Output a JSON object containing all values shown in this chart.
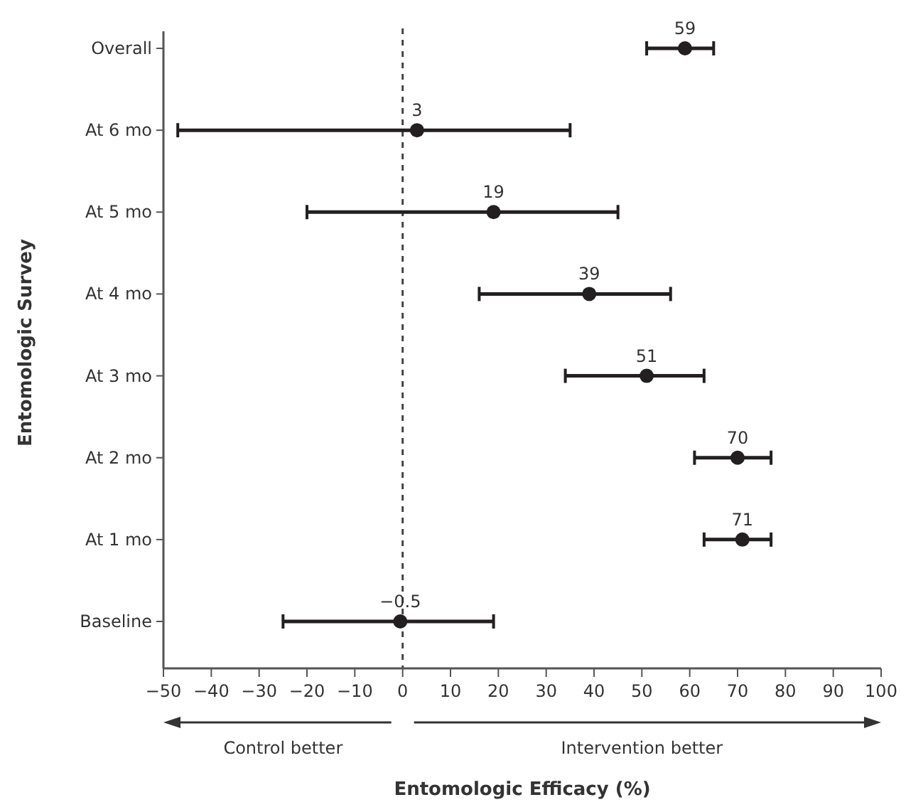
{
  "chart_data": {
    "type": "scatter",
    "orientation": "horizontal",
    "categories": [
      "Overall",
      "At 6 mo",
      "At 5 mo",
      "At 4 mo",
      "At 3 mo",
      "At 2 mo",
      "At 1 mo",
      "Baseline"
    ],
    "values": [
      59,
      3,
      19,
      39,
      51,
      70,
      71,
      -0.5
    ],
    "errors": [
      [
        51,
        65
      ],
      [
        -47,
        35
      ],
      [
        -20,
        45
      ],
      [
        16,
        56
      ],
      [
        34,
        63
      ],
      [
        61,
        77
      ],
      [
        63,
        77
      ],
      [
        -25,
        19
      ]
    ],
    "color": "#231f20",
    "marker": "circle",
    "data_labels": true,
    "value_labels": [
      "59",
      "3",
      "19",
      "39",
      "51",
      "70",
      "71",
      "−0.5"
    ],
    "xlim": [
      -50,
      100
    ],
    "xticks": [
      {
        "value": -50,
        "label": "−50"
      },
      {
        "value": -40,
        "label": "−40"
      },
      {
        "value": -30,
        "label": "−30"
      },
      {
        "value": -20,
        "label": "−20"
      },
      {
        "value": -10,
        "label": "−10"
      },
      0,
      10,
      20,
      30,
      40,
      50,
      60,
      70,
      80,
      90,
      100
    ],
    "ref_lines": [
      {
        "axis": "x",
        "value": 0,
        "line_style": "dashed"
      }
    ],
    "ylabel": "Entomologic Survey",
    "xlabel": "Entomologic Efficacy (%)",
    "annotations": [
      "Control better",
      "Intervention better"
    ],
    "grid": false
  }
}
